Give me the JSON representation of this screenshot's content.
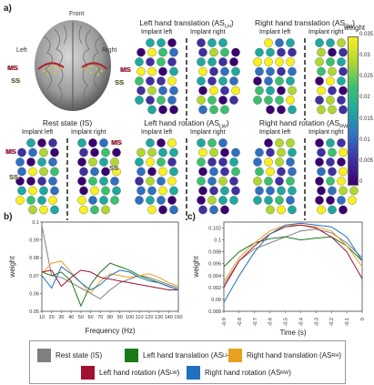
{
  "panel_labels": {
    "a": "a)",
    "b": "b)",
    "c": "c)"
  },
  "brain": {
    "front": "Front",
    "left": "Left",
    "right": "Right",
    "ms": "MS",
    "ss": "SS"
  },
  "panels": [
    {
      "title": "Left hand translation (AS",
      "sub": "LH",
      "x": 145,
      "y": 22
    },
    {
      "title": "Right hand translation (AS",
      "sub": "RH",
      "x": 275,
      "y": 22
    },
    {
      "title": "Rest state (IS)",
      "sub": "",
      "x": 14,
      "y": 132
    },
    {
      "title": "Left hand rotation (AS",
      "sub": "LW",
      "x": 145,
      "y": 132
    },
    {
      "title": "Right hand rotation (AS",
      "sub": "RW",
      "x": 275,
      "y": 132
    }
  ],
  "implant_left": "Implant left",
  "implant_right": "Implant right",
  "colorbar": {
    "label": "weight",
    "ticks": [
      "0.035",
      "0.03",
      "0.025",
      "0.02",
      "0.015",
      "0.01",
      "0.005",
      "0"
    ]
  },
  "chart_data": [
    {
      "type": "line",
      "xlabel": "Frequency (Hz)",
      "ylabel": "weight",
      "x": [
        10,
        20,
        30,
        40,
        50,
        60,
        70,
        80,
        90,
        100,
        110,
        120,
        130,
        140,
        150
      ],
      "xticks": [
        "10",
        "20",
        "30",
        "40",
        "50",
        "60",
        "70",
        "80",
        "90",
        "100",
        "110",
        "120",
        "130",
        "140",
        "150"
      ],
      "ylim": [
        0.05,
        0.1
      ],
      "yticks": [
        "0.1",
        "0.09",
        "0.08",
        "0.07",
        "0.06",
        "0.05"
      ],
      "series": [
        {
          "name": "Rest state (IS)",
          "color": "#808080",
          "values": [
            0.098,
            0.07,
            0.069,
            0.066,
            0.063,
            0.06,
            0.057,
            0.062,
            0.066,
            0.068,
            0.07,
            0.069,
            0.067,
            0.065,
            0.063
          ]
        },
        {
          "name": "Left hand translation (ASLH)",
          "color": "#1a7a1a",
          "values": [
            0.072,
            0.07,
            0.072,
            0.067,
            0.053,
            0.065,
            0.072,
            0.077,
            0.075,
            0.073,
            0.07,
            0.068,
            0.066,
            0.064,
            0.062
          ]
        },
        {
          "name": "Right hand translation (ASRH)",
          "color": "#e8a020",
          "values": [
            0.071,
            0.077,
            0.078,
            0.072,
            0.066,
            0.06,
            0.067,
            0.071,
            0.07,
            0.069,
            0.07,
            0.071,
            0.069,
            0.066,
            0.064
          ]
        },
        {
          "name": "Left hand rotation (ASLW)",
          "color": "#a01030",
          "values": [
            0.072,
            0.073,
            0.064,
            0.069,
            0.073,
            0.072,
            0.069,
            0.068,
            0.067,
            0.066,
            0.065,
            0.064,
            0.063,
            0.062,
            0.062
          ]
        },
        {
          "name": "Right hand rotation (ASRW)",
          "color": "#2070c0",
          "values": [
            0.07,
            0.063,
            0.075,
            0.071,
            0.066,
            0.062,
            0.065,
            0.07,
            0.073,
            0.072,
            0.069,
            0.067,
            0.066,
            0.064,
            0.062
          ]
        }
      ]
    },
    {
      "type": "line",
      "xlabel": "Time (s)",
      "ylabel": "weight",
      "x": [
        -0.9,
        -0.8,
        -0.7,
        -0.6,
        -0.5,
        -0.4,
        -0.3,
        -0.2,
        -0.1,
        0
      ],
      "xticks": [
        "-0.9",
        "-0.8",
        "-0.7",
        "-0.6",
        "-0.5",
        "-0.4",
        "-0.3",
        "-0.2",
        "-0.1",
        "0"
      ],
      "ylim": [
        0.088,
        0.103
      ],
      "yticks": [
        "0.102",
        "0.1",
        "0.098",
        "0.096",
        "0.094",
        "0.092",
        "0.09",
        "0.088"
      ],
      "series": [
        {
          "name": "Rest state (IS)",
          "color": "#808080",
          "values": [
            0.0925,
            0.0965,
            0.0985,
            0.0995,
            0.1005,
            0.1015,
            0.1018,
            0.1012,
            0.0995,
            0.097
          ]
        },
        {
          "name": "Left hand translation (ASLH)",
          "color": "#1a7a1a",
          "values": [
            0.0955,
            0.098,
            0.0995,
            0.1002,
            0.1005,
            0.1,
            0.1003,
            0.1005,
            0.099,
            0.0965
          ]
        },
        {
          "name": "Right hand translation (ASRH)",
          "color": "#e8a020",
          "values": [
            0.093,
            0.097,
            0.0995,
            0.1015,
            0.1025,
            0.1025,
            0.1022,
            0.1015,
            0.099,
            0.0955
          ]
        },
        {
          "name": "Left hand rotation (ASLW)",
          "color": "#a01030",
          "values": [
            0.092,
            0.0965,
            0.099,
            0.101,
            0.1022,
            0.1025,
            0.102,
            0.1005,
            0.098,
            0.0935
          ]
        },
        {
          "name": "Right hand rotation (ASRW)",
          "color": "#2070c0",
          "values": [
            0.0895,
            0.094,
            0.098,
            0.101,
            0.1025,
            0.1028,
            0.1025,
            0.1022,
            0.1005,
            0.0965
          ]
        }
      ]
    }
  ],
  "legend": [
    {
      "text": "Rest state (IS)",
      "sub": "",
      "color": "#808080"
    },
    {
      "text": "Left hand translation (AS",
      "sub": "LH",
      "color": "#1a7a1a"
    },
    {
      "text": "Right hand translation (AS",
      "sub": "RH",
      "color": "#e8a020"
    },
    {
      "text": "Left hand rotation (AS",
      "sub": "LW",
      "color": "#a01030"
    },
    {
      "text": "Right hand rotation (AS",
      "sub": "RW",
      "color": "#2070c0"
    }
  ]
}
